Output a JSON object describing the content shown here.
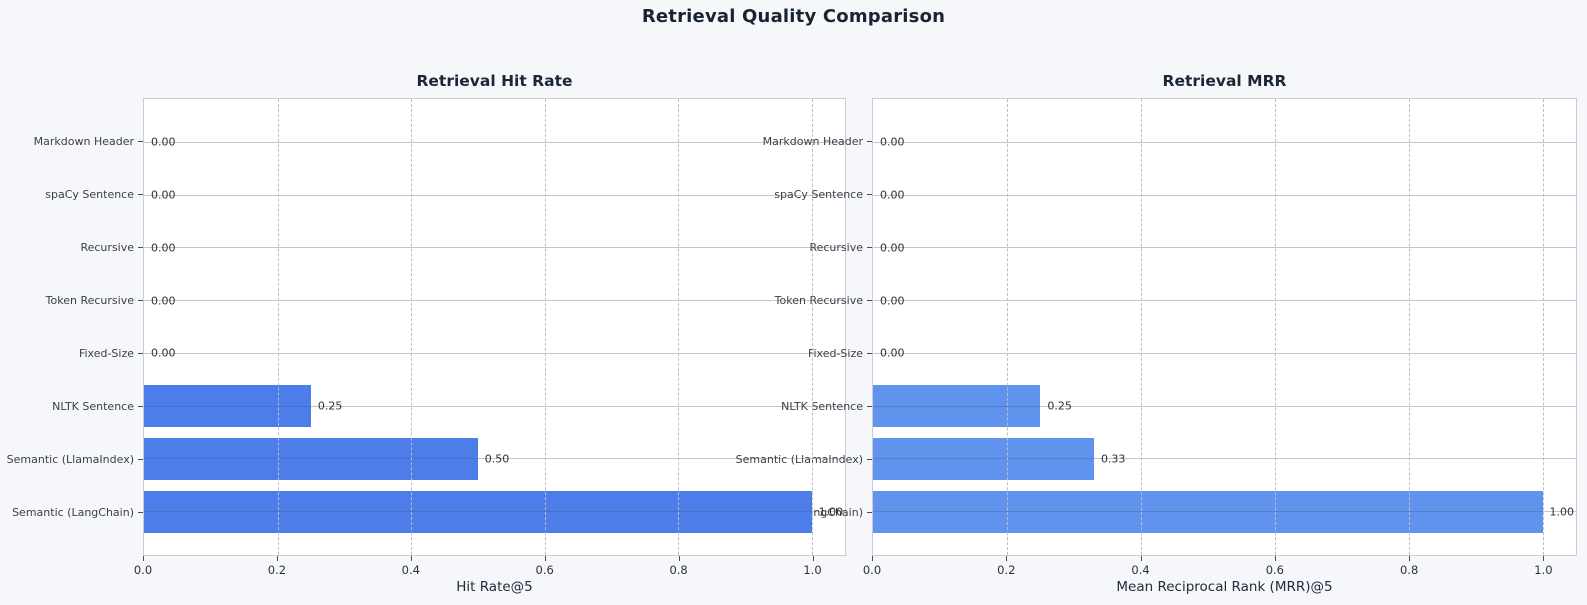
{
  "main_title": "Retrieval Quality Comparison",
  "colors": {
    "page_background": "#f5f7fa",
    "plot_background": "#ffffff",
    "plot_border": "#c9cdd4",
    "hit_rate_bar": "#4c7de9",
    "mrr_bar": "#5f93ee",
    "title_text": "#1a2332"
  },
  "chart_data": [
    {
      "type": "bar",
      "orientation": "horizontal",
      "title": "Retrieval Hit Rate",
      "xlabel": "Hit Rate@5",
      "ylabel": "",
      "categories": [
        "Markdown Header",
        "spaCy Sentence",
        "Recursive",
        "Token Recursive",
        "Fixed-Size",
        "NLTK Sentence",
        "Semantic (LlamaIndex)",
        "Semantic (LangChain)"
      ],
      "values": [
        0.0,
        0.0,
        0.0,
        0.0,
        0.0,
        0.25,
        0.5,
        1.0
      ],
      "value_labels": [
        "0.00",
        "0.00",
        "0.00",
        "0.00",
        "0.00",
        "0.25",
        "0.50",
        "1.00"
      ],
      "x_ticks": [
        0.0,
        0.2,
        0.4,
        0.6,
        0.8,
        1.0
      ],
      "x_tick_labels": [
        "0.0",
        "0.2",
        "0.4",
        "0.6",
        "0.8",
        "1.0"
      ],
      "xlim": [
        0,
        1.05
      ],
      "grid": true,
      "legend": false,
      "bar_color": "#4c7de9"
    },
    {
      "type": "bar",
      "orientation": "horizontal",
      "title": "Retrieval MRR",
      "xlabel": "Mean Reciprocal Rank (MRR)@5",
      "ylabel": "",
      "categories": [
        "Markdown Header",
        "spaCy Sentence",
        "Recursive",
        "Token Recursive",
        "Fixed-Size",
        "NLTK Sentence",
        "Semantic (LlamaIndex)",
        "Semantic (LangChain)"
      ],
      "values": [
        0.0,
        0.0,
        0.0,
        0.0,
        0.0,
        0.25,
        0.33,
        1.0
      ],
      "value_labels": [
        "0.00",
        "0.00",
        "0.00",
        "0.00",
        "0.00",
        "0.25",
        "0.33",
        "1.00"
      ],
      "x_ticks": [
        0.0,
        0.2,
        0.4,
        0.6,
        0.8,
        1.0
      ],
      "x_tick_labels": [
        "0.0",
        "0.2",
        "0.4",
        "0.6",
        "0.8",
        "1.0"
      ],
      "xlim": [
        0,
        1.05
      ],
      "grid": true,
      "legend": false,
      "bar_color": "#5f93ee"
    }
  ]
}
